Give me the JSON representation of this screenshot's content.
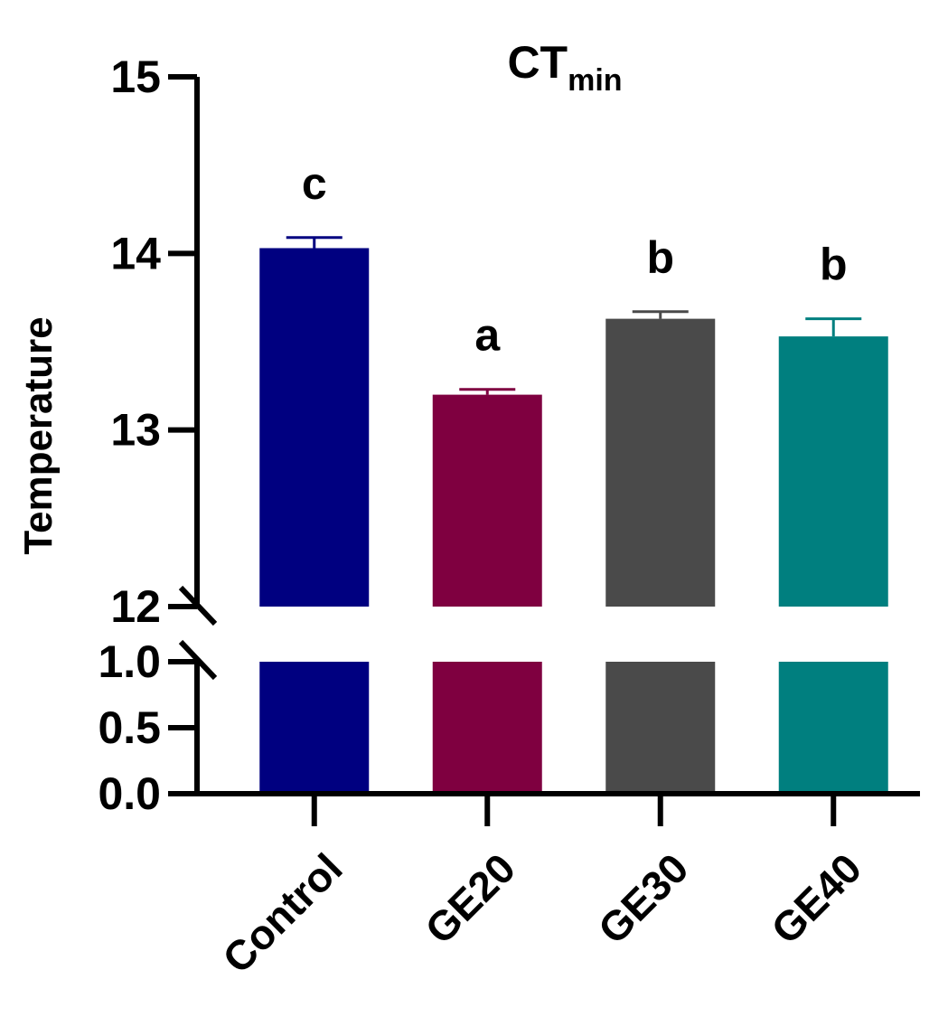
{
  "chart_data": {
    "type": "bar",
    "title": "CT",
    "title_subscript": "min",
    "ylabel": "Temperature",
    "xlabel": "",
    "categories": [
      "Control",
      "GE20",
      "GE30",
      "GE40"
    ],
    "values": [
      14.03,
      13.2,
      13.63,
      13.53
    ],
    "errors": [
      0.06,
      0.03,
      0.04,
      0.1
    ],
    "significance_letters": [
      "c",
      "a",
      "b",
      "b"
    ],
    "colors": [
      "#000080",
      "#7f0040",
      "#4a4a4a",
      "#007f7f"
    ],
    "y_axis_break": true,
    "lower_segment": {
      "range": [
        0.0,
        1.0
      ],
      "ticks": [
        "0.0",
        "0.5",
        "1.0"
      ]
    },
    "upper_segment": {
      "range": [
        12,
        15
      ],
      "ticks": [
        "12",
        "13",
        "14",
        "15"
      ]
    },
    "grid": false,
    "legend": "none"
  }
}
